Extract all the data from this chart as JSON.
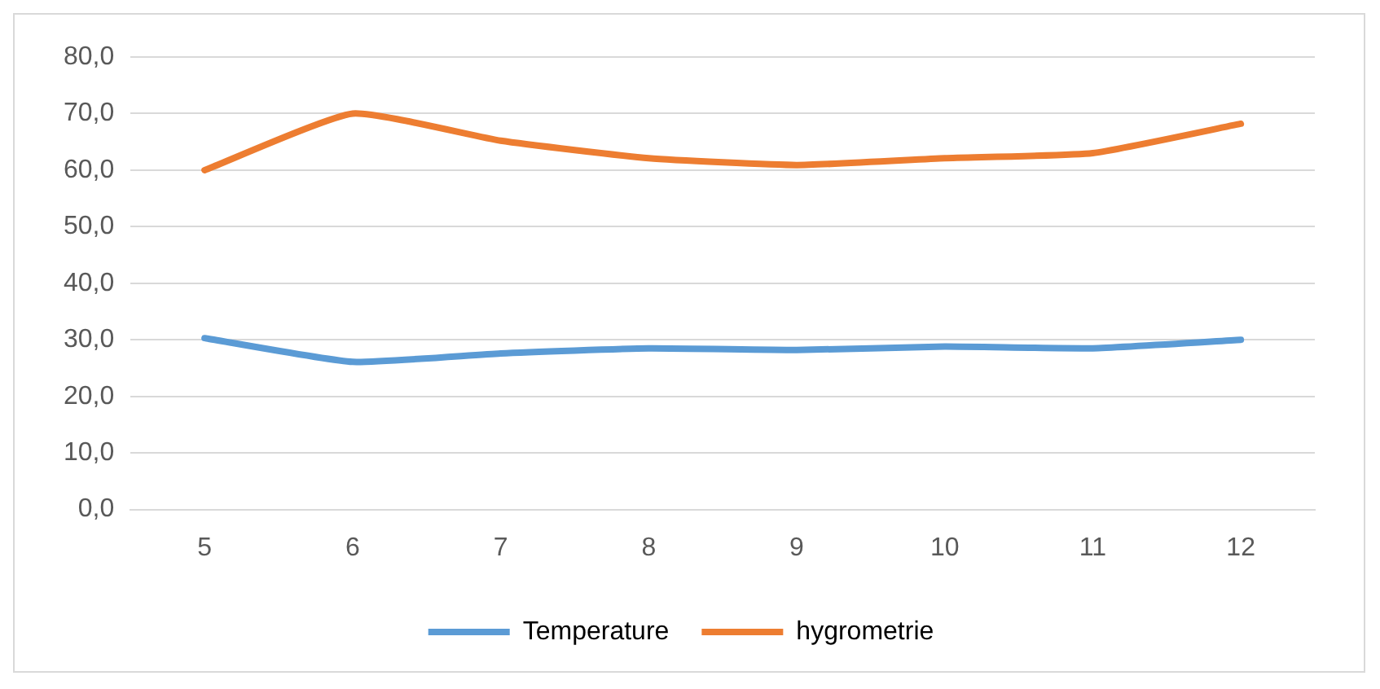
{
  "chart_data": {
    "type": "line",
    "categories": [
      "5",
      "6",
      "7",
      "8",
      "9",
      "10",
      "11",
      "12"
    ],
    "series": [
      {
        "name": "Temperature",
        "color": "#5b9bd5",
        "values": [
          30.3,
          26.1,
          27.6,
          28.5,
          28.2,
          28.8,
          28.5,
          30.0
        ]
      },
      {
        "name": "hygrometrie",
        "color": "#ed7d31",
        "values": [
          60.0,
          70.0,
          65.2,
          62.1,
          60.9,
          62.1,
          63.0,
          68.2
        ]
      }
    ],
    "ylim": [
      0,
      80
    ],
    "yticks": [
      {
        "value": 0,
        "label": "0,0"
      },
      {
        "value": 10,
        "label": "10,0"
      },
      {
        "value": 20,
        "label": "20,0"
      },
      {
        "value": 30,
        "label": "30,0"
      },
      {
        "value": 40,
        "label": "40,0"
      },
      {
        "value": 50,
        "label": "50,0"
      },
      {
        "value": 60,
        "label": "60,0"
      },
      {
        "value": 70,
        "label": "70,0"
      },
      {
        "value": 80,
        "label": "80,0"
      }
    ],
    "grid": "y",
    "legend": "bottom",
    "marker": "none",
    "line_style": "solid"
  }
}
